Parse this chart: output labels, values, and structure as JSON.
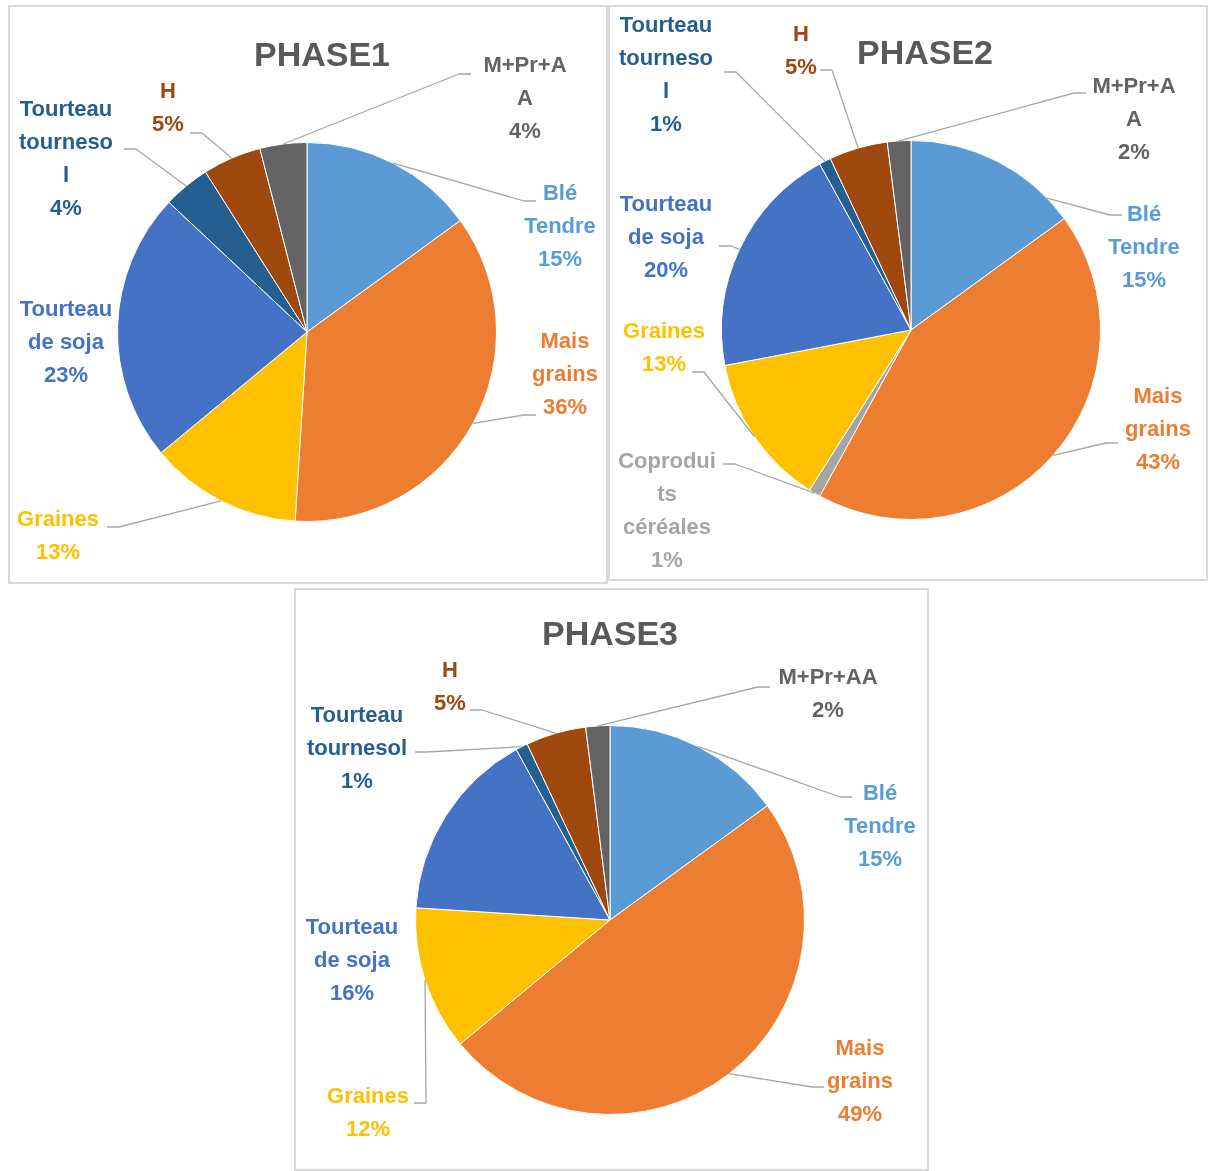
{
  "chart_data": [
    {
      "type": "pie",
      "title": "PHASE1",
      "categories": [
        "Blé Tendre",
        "Mais grains",
        "Graines",
        "Tourteau de soja",
        "Tourteau tournesol",
        "H",
        "M+Pr+AA"
      ],
      "values": [
        15,
        36,
        13,
        23,
        4,
        5,
        4
      ],
      "colors": [
        "#5b9bd5",
        "#ed7d31",
        "#ffc000",
        "#4472c4",
        "#255e91",
        "#9e480e",
        "#636363"
      ],
      "value_labels": [
        "15%",
        "36%",
        "13%",
        "23%",
        "4%",
        "5%",
        "4%"
      ]
    },
    {
      "type": "pie",
      "title": "PHASE2",
      "categories": [
        "Blé Tendre",
        "Mais grains",
        "Coproduits céréales",
        "Graines",
        "Tourteau de soja",
        "Tourteau tournesol",
        "H",
        "M+Pr+AA"
      ],
      "values": [
        15,
        43,
        1,
        13,
        20,
        1,
        5,
        2
      ],
      "colors": [
        "#5b9bd5",
        "#ed7d31",
        "#a5a5a5",
        "#ffc000",
        "#4472c4",
        "#255e91",
        "#9e480e",
        "#636363"
      ],
      "value_labels": [
        "15%",
        "43%",
        "1%",
        "13%",
        "20%",
        "1%",
        "5%",
        "2%"
      ]
    },
    {
      "type": "pie",
      "title": "PHASE3",
      "categories": [
        "Blé Tendre",
        "Mais grains",
        "Graines",
        "Tourteau de soja",
        "Tourteau tournesol",
        "H",
        "M+Pr+AA"
      ],
      "values": [
        15,
        49,
        12,
        16,
        1,
        5,
        2
      ],
      "colors": [
        "#5b9bd5",
        "#ed7d31",
        "#ffc000",
        "#4472c4",
        "#255e91",
        "#9e480e",
        "#636363"
      ],
      "value_labels": [
        "15%",
        "49%",
        "12%",
        "16%",
        "1%",
        "5%",
        "2%"
      ]
    }
  ]
}
